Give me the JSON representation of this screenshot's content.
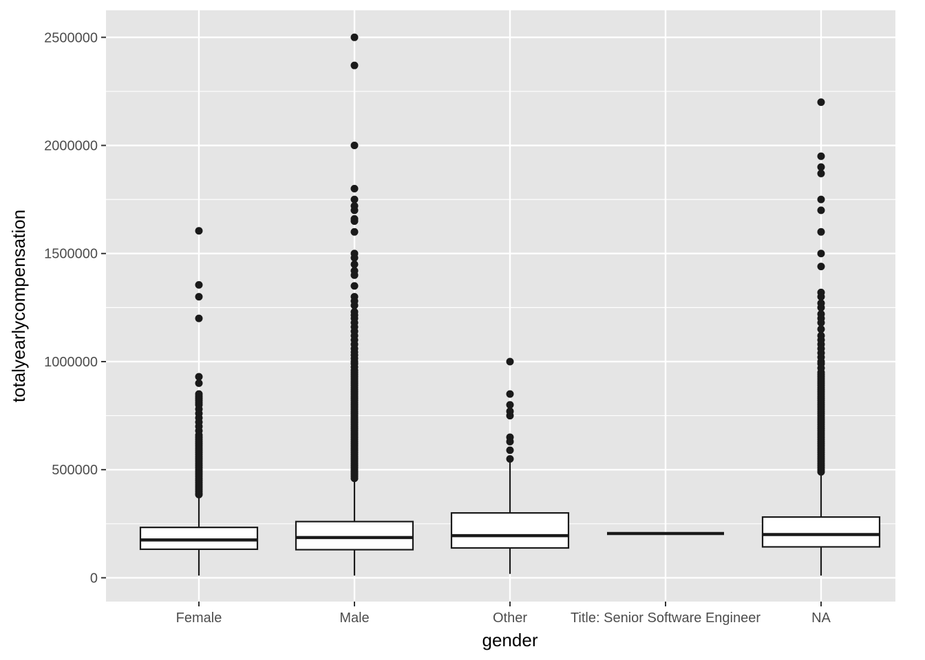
{
  "chart_data": {
    "type": "boxplot",
    "xlabel": "gender",
    "ylabel": "totalyearlycompensation",
    "ylim": [
      -110000,
      2625000
    ],
    "y_ticks": [
      0,
      500000,
      1000000,
      1500000,
      2000000,
      2500000
    ],
    "y_minor_ticks": [
      250000,
      750000,
      1250000,
      1750000,
      2250000
    ],
    "grid": true,
    "colors": {
      "panel_background": "#e5e5e5",
      "grid": "#ffffff",
      "box_fill": "#ffffff",
      "box_stroke": "#1a1a1a",
      "outlier": "#1a1a1a"
    },
    "categories": [
      "Female",
      "Male",
      "Other",
      "Title: Senior Software Engineer",
      "NA"
    ],
    "boxes": [
      {
        "category": "Female",
        "q1": 132000,
        "median": 175000,
        "q3": 233000,
        "whisker_low": 10000,
        "whisker_high": 378000,
        "outliers": [
          385000,
          390000,
          400000,
          410000,
          420000,
          430000,
          440000,
          450000,
          460000,
          470000,
          480000,
          490000,
          500000,
          510000,
          520000,
          530000,
          540000,
          550000,
          560000,
          570000,
          580000,
          590000,
          600000,
          610000,
          620000,
          630000,
          640000,
          650000,
          660000,
          680000,
          700000,
          720000,
          740000,
          760000,
          780000,
          800000,
          810000,
          820000,
          830000,
          840000,
          850000,
          900000,
          930000,
          1200000,
          1300000,
          1355000,
          1605000
        ]
      },
      {
        "category": "Male",
        "q1": 130000,
        "median": 186000,
        "q3": 260000,
        "whisker_low": 10000,
        "whisker_high": 450000,
        "outliers": [
          460000,
          470000,
          480000,
          490000,
          500000,
          510000,
          520000,
          530000,
          540000,
          550000,
          560000,
          570000,
          580000,
          590000,
          600000,
          610000,
          620000,
          630000,
          640000,
          650000,
          660000,
          670000,
          680000,
          690000,
          700000,
          710000,
          720000,
          730000,
          740000,
          750000,
          760000,
          770000,
          780000,
          790000,
          800000,
          810000,
          820000,
          830000,
          840000,
          850000,
          860000,
          870000,
          880000,
          890000,
          900000,
          910000,
          920000,
          930000,
          940000,
          950000,
          960000,
          975000,
          990000,
          1000000,
          1015000,
          1030000,
          1045000,
          1060000,
          1080000,
          1100000,
          1120000,
          1140000,
          1160000,
          1180000,
          1200000,
          1215000,
          1230000,
          1260000,
          1280000,
          1300000,
          1350000,
          1400000,
          1420000,
          1450000,
          1480000,
          1500000,
          1600000,
          1650000,
          1660000,
          1700000,
          1720000,
          1750000,
          1800000,
          2000000,
          2370000,
          2500000
        ]
      },
      {
        "category": "Other",
        "q1": 138000,
        "median": 195000,
        "q3": 300000,
        "whisker_low": 18000,
        "whisker_high": 540000,
        "outliers": [
          550000,
          590000,
          630000,
          650000,
          750000,
          770000,
          800000,
          850000,
          1000000
        ]
      },
      {
        "category": "Title: Senior Software Engineer",
        "q1": 205000,
        "median": 205000,
        "q3": 205000,
        "whisker_low": 205000,
        "whisker_high": 205000,
        "outliers": []
      },
      {
        "category": "NA",
        "q1": 143000,
        "median": 200000,
        "q3": 281000,
        "whisker_low": 10000,
        "whisker_high": 485000,
        "outliers": [
          490000,
          500000,
          510000,
          520000,
          530000,
          540000,
          550000,
          560000,
          570000,
          580000,
          590000,
          600000,
          610000,
          620000,
          630000,
          640000,
          650000,
          660000,
          670000,
          680000,
          690000,
          700000,
          710000,
          720000,
          730000,
          740000,
          750000,
          760000,
          770000,
          780000,
          790000,
          800000,
          810000,
          820000,
          830000,
          840000,
          850000,
          860000,
          870000,
          880000,
          890000,
          900000,
          910000,
          920000,
          930000,
          940000,
          950000,
          970000,
          990000,
          1000000,
          1020000,
          1040000,
          1060000,
          1080000,
          1100000,
          1120000,
          1150000,
          1180000,
          1200000,
          1220000,
          1250000,
          1270000,
          1300000,
          1320000,
          1440000,
          1500000,
          1600000,
          1700000,
          1750000,
          1870000,
          1900000,
          1950000,
          2200000
        ]
      }
    ]
  }
}
